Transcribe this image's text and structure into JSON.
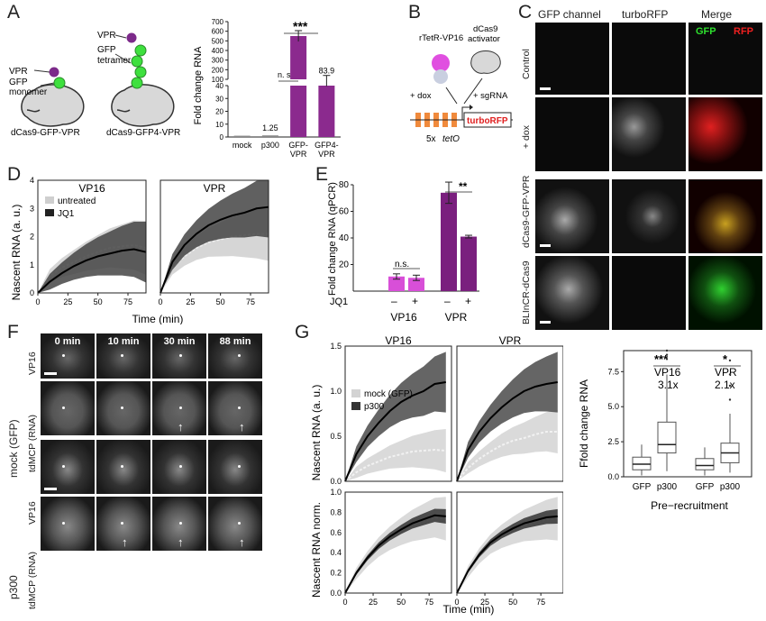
{
  "panel_labels": {
    "A": "A",
    "B": "B",
    "C": "C",
    "D": "D",
    "E": "E",
    "F": "F",
    "G": "G"
  },
  "panelA": {
    "schematic": {
      "left_vpr": "VPR",
      "left_gfp": "GFP",
      "left_monomer": "monomer",
      "left_name": "dCas9-GFP-VPR",
      "right_vpr": "VPR",
      "right_gfp": "GFP",
      "right_tetramer": "tetramer",
      "right_name": "dCas9-GFP4-VPR"
    },
    "sig_ns": "n. s.",
    "sig_stars": "***"
  },
  "panelB": {
    "rtetr": "rTetR-VP16",
    "dcas9": "dCas9",
    "activator": "activator",
    "dox": "+ dox",
    "sgrna": "+ sgRNA",
    "tetO_prefix": "5x ",
    "tetO": "tetO",
    "reporter": "turboRFP"
  },
  "panelC": {
    "col_gfp": "GFP channel",
    "col_rfp": "turboRFP",
    "col_merge": "Merge",
    "merge_gfp": "GFP",
    "merge_rfp": "RFP",
    "row_control": "Control",
    "row_dox": "+ dox",
    "row_dcas9": "dCas9-GFP-VPR",
    "row_blincr": "BLInCR-dCas9"
  },
  "panelD": {
    "sig": "",
    "ylabel": "Nascent RNA (a. u.)",
    "xlabel": "Time (min)"
  },
  "panelE": {
    "ylabel": "Fold change RNA (qPCR)",
    "jq1": "JQ1",
    "minus1": "–",
    "plus1": "+",
    "minus2": "–",
    "plus2": "+",
    "sig_ns": "n.s.",
    "sig_stars": "**"
  },
  "panelF": {
    "times": [
      "0 min",
      "10 min",
      "30 min",
      "88 min"
    ],
    "row_vp16": "VP16",
    "row_mcp": "tdMCP (RNA)",
    "row_vp16b": "VP16",
    "row_mcpb": "tdMCP (RNA)",
    "group_mock": "mock (GFP)",
    "group_p300": "p300"
  },
  "panelG": {
    "ylabel_top": "Nascent RNA (a. u.)",
    "ylabel_bottom": "Nascent RNA norm.",
    "xlabel": "Time (min)",
    "box": {
      "ylabel": "Ffold change RNA",
      "xlabel": "Pre−recruitment",
      "vp16_stars": "***",
      "vp16_name": "VP16",
      "vp16_fold": "3.1x",
      "vpr_stars": "*",
      "vpr_name": "VPR",
      "vpr_fold": "2.1x"
    }
  },
  "chart_data": [
    {
      "id": "A",
      "type": "bar",
      "categories": [
        "mock",
        "p300",
        "GFP-\nVPR",
        "GFP4-\nVPR"
      ],
      "values": [
        1,
        1.25,
        550,
        83.9
      ],
      "value_labels": [
        "",
        "1.25",
        "",
        "83.9"
      ],
      "colors": [
        "#888888",
        "#888888",
        "#8b2a8e",
        "#8b2a8e"
      ],
      "ylabel": "Fold change RNA",
      "yaxis": "broken",
      "ylim_low": [
        0,
        40
      ],
      "ylim_high": [
        100,
        700
      ],
      "yticks_low": [
        0,
        10,
        20,
        30,
        40
      ],
      "yticks_high": [
        100,
        200,
        300,
        400,
        500,
        600,
        700
      ]
    },
    {
      "id": "D",
      "type": "area",
      "xlabel": "Time (min)",
      "ylabel": "Nascent RNA (a. u.)",
      "ylim": [
        0,
        4
      ],
      "legend": [
        "untreated",
        "JQ1"
      ],
      "panels": [
        {
          "title": "VP16",
          "xlim": [
            0,
            90
          ],
          "xticks": [
            0,
            25,
            50,
            75
          ],
          "untreated": {
            "x": [
              0,
              10,
              20,
              30,
              40,
              50,
              60,
              70,
              80,
              90
            ],
            "y": [
              0,
              0.6,
              0.9,
              1.1,
              1.3,
              1.45,
              1.6,
              1.65,
              1.7,
              1.6
            ]
          },
          "jq1": {
            "x": [
              0,
              10,
              20,
              30,
              40,
              50,
              60,
              70,
              80,
              90
            ],
            "y": [
              0,
              0.4,
              0.7,
              0.95,
              1.15,
              1.3,
              1.4,
              1.5,
              1.55,
              1.45
            ]
          }
        },
        {
          "title": "VPR",
          "xlim": [
            0,
            90
          ],
          "xticks": [
            0,
            25,
            50,
            75
          ],
          "untreated": {
            "x": [
              0,
              10,
              20,
              30,
              40,
              50,
              60,
              70,
              80,
              90
            ],
            "y": [
              0,
              0.9,
              1.3,
              1.6,
              1.8,
              1.9,
              2.0,
              2.05,
              2.1,
              2.1
            ]
          },
          "jq1": {
            "x": [
              0,
              10,
              20,
              30,
              40,
              50,
              60,
              70,
              80,
              90
            ],
            "y": [
              0,
              1.1,
              1.7,
              2.1,
              2.4,
              2.6,
              2.75,
              2.85,
              3.0,
              3.05
            ]
          }
        }
      ]
    },
    {
      "id": "E",
      "type": "bar",
      "categories": [
        "VP16 –",
        "VP16 +",
        "VPR –",
        "VPR +"
      ],
      "values": [
        11,
        10,
        74,
        41
      ],
      "errors": [
        2,
        2,
        8,
        1
      ],
      "colors": [
        "#d84fd8",
        "#d84fd8",
        "#7a1f7e",
        "#7a1f7e"
      ],
      "ylim": [
        0,
        80
      ],
      "yticks": [
        0,
        20,
        40,
        60,
        80
      ],
      "ylabel": "Fold change RNA (qPCR)",
      "groups": [
        "VP16",
        "VPR"
      ]
    },
    {
      "id": "G_top",
      "type": "area",
      "ylabel": "Nascent RNA (a. u.)",
      "ylim": [
        0,
        1.5
      ],
      "yticks": [
        0,
        0.5,
        1.0,
        1.5
      ],
      "legend": [
        "mock (GFP)",
        "p300"
      ],
      "panels": [
        {
          "title": "VP16",
          "xlim": [
            0,
            95
          ],
          "mock": {
            "x": [
              0,
              10,
              20,
              30,
              40,
              50,
              60,
              70,
              80,
              90
            ],
            "y": [
              0,
              0.1,
              0.17,
              0.22,
              0.27,
              0.3,
              0.33,
              0.34,
              0.35,
              0.34
            ]
          },
          "p300": {
            "x": [
              0,
              10,
              20,
              30,
              40,
              50,
              60,
              70,
              80,
              90
            ],
            "y": [
              0,
              0.3,
              0.5,
              0.65,
              0.78,
              0.88,
              0.95,
              1.0,
              1.08,
              1.1
            ]
          }
        },
        {
          "title": "VPR",
          "xlim": [
            0,
            95
          ],
          "mock": {
            "x": [
              0,
              10,
              20,
              30,
              40,
              50,
              60,
              70,
              80,
              90
            ],
            "y": [
              0,
              0.15,
              0.25,
              0.33,
              0.4,
              0.45,
              0.48,
              0.52,
              0.55,
              0.55
            ]
          },
          "p300": {
            "x": [
              0,
              10,
              20,
              30,
              40,
              50,
              60,
              70,
              80,
              90
            ],
            "y": [
              0,
              0.35,
              0.55,
              0.7,
              0.82,
              0.92,
              1.0,
              1.05,
              1.08,
              1.1
            ]
          }
        }
      ]
    },
    {
      "id": "G_bottom",
      "type": "area",
      "ylabel": "Nascent RNA norm.",
      "xlabel": "Time (min)",
      "ylim": [
        0,
        1.0
      ],
      "yticks": [
        0,
        0.2,
        0.4,
        0.6,
        0.8,
        1.0
      ],
      "xticks": [
        0,
        25,
        50,
        75
      ],
      "panels": [
        {
          "xlim": [
            0,
            95
          ],
          "x": [
            0,
            10,
            20,
            30,
            40,
            50,
            60,
            70,
            80,
            90
          ],
          "y": [
            0,
            0.2,
            0.35,
            0.47,
            0.56,
            0.63,
            0.69,
            0.73,
            0.77,
            0.76
          ]
        },
        {
          "xlim": [
            0,
            95
          ],
          "x": [
            0,
            10,
            20,
            30,
            40,
            50,
            60,
            70,
            80,
            90
          ],
          "y": [
            0,
            0.22,
            0.38,
            0.5,
            0.58,
            0.64,
            0.69,
            0.72,
            0.75,
            0.76
          ]
        }
      ]
    },
    {
      "id": "G_box",
      "type": "box",
      "ylabel": "Ffold change RNA",
      "xlabel": "Pre−recruitment",
      "ylim": [
        0,
        9
      ],
      "yticks": [
        0,
        2.5,
        5.0,
        7.5
      ],
      "categories": [
        "GFP",
        "p300",
        "GFP",
        "p300"
      ],
      "boxes": [
        {
          "q1": 0.5,
          "med": 0.9,
          "q3": 1.4,
          "lo": 0.1,
          "hi": 2.3
        },
        {
          "q1": 1.7,
          "med": 2.3,
          "q3": 3.9,
          "lo": 0.4,
          "hi": 7.3,
          "outliers": [
            8.4,
            8.7,
            9.0
          ]
        },
        {
          "q1": 0.5,
          "med": 0.8,
          "q3": 1.3,
          "lo": 0.1,
          "hi": 2.1
        },
        {
          "q1": 1.0,
          "med": 1.7,
          "q3": 2.4,
          "lo": 0.3,
          "hi": 4.5,
          "outliers": [
            5.5,
            6.5,
            7.3,
            8.3
          ]
        }
      ]
    }
  ]
}
